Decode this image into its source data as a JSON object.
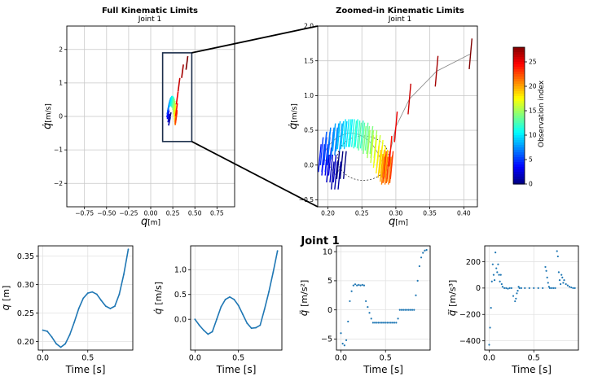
{
  "figure": {
    "suptitle": "Joint 1",
    "accent_color": "#1f77b4",
    "colormap": "jet",
    "connector_color": "#000000",
    "rect_color": "#1b2d4a"
  },
  "chart_data": [
    {
      "id": "full",
      "type": "scatter",
      "title": "Full Kinematic Limits",
      "subtitle": "Joint 1",
      "xlabel_sym": "q",
      "xlabel_unit": "[m]",
      "ylabel_sym": "q̇",
      "ylabel_unit": "[m/s]",
      "xlim": [
        -0.95,
        0.95
      ],
      "ylim": [
        -2.7,
        2.7
      ],
      "xticks": [
        -0.75,
        -0.5,
        -0.25,
        0,
        0.25,
        0.5,
        0.75
      ],
      "xtick_labels": [
        "−0.75",
        "−0.50",
        "−0.25",
        "0.00",
        "0.25",
        "0.50",
        "0.75"
      ],
      "yticks": [
        -2,
        -1,
        0,
        1,
        2
      ],
      "ytick_labels": [
        "−2",
        "−1",
        "0",
        "1",
        "2"
      ],
      "grid": true,
      "zoom_rect": {
        "x": [
          0.135,
          0.465
        ],
        "y": [
          -0.75,
          1.9
        ]
      }
    },
    {
      "id": "zoom",
      "type": "scatter",
      "title": "Zoomed-in Kinematic Limits",
      "subtitle": "Joint 1",
      "xlabel_sym": "q",
      "xlabel_unit": "[m]",
      "ylabel_sym": "q̇",
      "ylabel_unit": "[m/s]",
      "xlim": [
        0.185,
        0.42
      ],
      "ylim": [
        -0.6,
        2.0
      ],
      "xticks": [
        0.2,
        0.25,
        0.3,
        0.35,
        0.4
      ],
      "xtick_labels": [
        "0.20",
        "0.25",
        "0.30",
        "0.35",
        "0.40"
      ],
      "yticks": [
        -0.5,
        0,
        0.5,
        1,
        1.5,
        2
      ],
      "ytick_labels": [
        "−0.5",
        "0.0",
        "0.5",
        "1.0",
        "1.5",
        "2.0"
      ],
      "grid": true,
      "observations": [
        {
          "i": 0,
          "q": 0.22,
          "qd": 0.0
        },
        {
          "i": 1,
          "q": 0.212,
          "qd": -0.15
        },
        {
          "i": 2,
          "q": 0.205,
          "qd": -0.05
        },
        {
          "i": 3,
          "q": 0.198,
          "qd": 0.05
        },
        {
          "i": 4,
          "q": 0.193,
          "qd": 0.1
        },
        {
          "i": 5,
          "q": 0.196,
          "qd": 0.2
        },
        {
          "i": 6,
          "q": 0.201,
          "qd": 0.28
        },
        {
          "i": 7,
          "q": 0.207,
          "qd": 0.34
        },
        {
          "i": 8,
          "q": 0.214,
          "qd": 0.4
        },
        {
          "i": 9,
          "q": 0.221,
          "qd": 0.43
        },
        {
          "i": 10,
          "q": 0.229,
          "qd": 0.46
        },
        {
          "i": 11,
          "q": 0.237,
          "qd": 0.46
        },
        {
          "i": 12,
          "q": 0.245,
          "qd": 0.44
        },
        {
          "i": 13,
          "q": 0.252,
          "qd": 0.41
        },
        {
          "i": 14,
          "q": 0.259,
          "qd": 0.36
        },
        {
          "i": 15,
          "q": 0.265,
          "qd": 0.3
        },
        {
          "i": 16,
          "q": 0.27,
          "qd": 0.23
        },
        {
          "i": 17,
          "q": 0.274,
          "qd": 0.16
        },
        {
          "i": 18,
          "q": 0.278,
          "qd": 0.08
        },
        {
          "i": 19,
          "q": 0.281,
          "qd": 0.02
        },
        {
          "i": 20,
          "q": 0.284,
          "qd": -0.04
        },
        {
          "i": 21,
          "q": 0.286,
          "qd": -0.08
        },
        {
          "i": 22,
          "q": 0.288,
          "qd": -0.06
        },
        {
          "i": 23,
          "q": 0.289,
          "qd": 0.0
        },
        {
          "i": 24,
          "q": 0.292,
          "qd": 0.2
        },
        {
          "i": 25,
          "q": 0.3,
          "qd": 0.55
        },
        {
          "i": 26,
          "q": 0.32,
          "qd": 0.95
        },
        {
          "i": 27,
          "q": 0.36,
          "qd": 1.35
        },
        {
          "i": 28,
          "q": 0.41,
          "qd": 1.6
        }
      ],
      "ellipse_center": [
        0.252,
        0.1
      ],
      "ellipse_radii": [
        0.038,
        0.32
      ]
    },
    {
      "id": "colorbar",
      "type": "heatmap",
      "label": "Observation index",
      "range": [
        0,
        28
      ],
      "ticks": [
        0,
        5,
        10,
        15,
        20,
        25
      ],
      "tick_labels": [
        "0",
        "5",
        "10",
        "15",
        "20",
        "25"
      ]
    },
    {
      "id": "pos",
      "type": "line",
      "ylabel_sym": "q",
      "ylabel_unit": "[m]",
      "xlabel": "Time [s]",
      "xlim": [
        -0.05,
        1.0
      ],
      "ylim": [
        0.185,
        0.368
      ],
      "xticks": [
        0,
        0.5
      ],
      "xtick_labels": [
        "0.0",
        "0.5"
      ],
      "yticks": [
        0.2,
        0.25,
        0.3,
        0.35
      ],
      "ytick_labels": [
        "0.20",
        "0.25",
        "0.30",
        "0.35"
      ],
      "x": [
        0.0,
        0.05,
        0.1,
        0.15,
        0.2,
        0.25,
        0.3,
        0.35,
        0.4,
        0.45,
        0.5,
        0.55,
        0.6,
        0.65,
        0.7,
        0.75,
        0.8,
        0.85,
        0.9,
        0.95
      ],
      "y": [
        0.22,
        0.218,
        0.208,
        0.196,
        0.19,
        0.196,
        0.212,
        0.234,
        0.258,
        0.276,
        0.285,
        0.287,
        0.283,
        0.272,
        0.262,
        0.258,
        0.262,
        0.283,
        0.318,
        0.362
      ]
    },
    {
      "id": "vel",
      "type": "line",
      "ylabel_sym": "q̇",
      "ylabel_unit": "[m/s]",
      "xlabel": "Time [s]",
      "xlim": [
        -0.05,
        1.0
      ],
      "ylim": [
        -0.62,
        1.48
      ],
      "xticks": [
        0,
        0.5
      ],
      "xtick_labels": [
        "0.0",
        "0.5"
      ],
      "yticks": [
        0,
        0.5,
        1.0
      ],
      "ytick_labels": [
        "0.0",
        "0.5",
        "1.0"
      ],
      "x": [
        0.0,
        0.05,
        0.1,
        0.15,
        0.2,
        0.25,
        0.3,
        0.35,
        0.4,
        0.45,
        0.5,
        0.55,
        0.6,
        0.65,
        0.7,
        0.75,
        0.8,
        0.85,
        0.9,
        0.95
      ],
      "y": [
        0.0,
        -0.12,
        -0.22,
        -0.3,
        -0.25,
        0.0,
        0.25,
        0.4,
        0.45,
        0.4,
        0.28,
        0.1,
        -0.08,
        -0.18,
        -0.17,
        -0.12,
        0.2,
        0.55,
        0.95,
        1.38
      ]
    },
    {
      "id": "acc",
      "type": "scatter",
      "ylabel_sym": "q̈",
      "ylabel_unit": "[m/s²]",
      "xlabel": "Time [s]",
      "xlim": [
        -0.05,
        1.0
      ],
      "ylim": [
        -6.9,
        11.0
      ],
      "xticks": [
        0,
        0.5
      ],
      "xtick_labels": [
        "0.0",
        "0.5"
      ],
      "yticks": [
        -5,
        0,
        5,
        10
      ],
      "ytick_labels": [
        "−5",
        "0",
        "5",
        "10"
      ],
      "x": [
        0.0,
        0.02,
        0.04,
        0.06,
        0.08,
        0.1,
        0.12,
        0.14,
        0.16,
        0.18,
        0.2,
        0.22,
        0.24,
        0.26,
        0.28,
        0.3,
        0.32,
        0.34,
        0.36,
        0.38,
        0.4,
        0.42,
        0.44,
        0.46,
        0.48,
        0.5,
        0.52,
        0.54,
        0.56,
        0.58,
        0.6,
        0.62,
        0.64,
        0.66,
        0.68,
        0.7,
        0.72,
        0.74,
        0.76,
        0.78,
        0.8,
        0.82,
        0.84,
        0.86,
        0.88,
        0.9,
        0.92,
        0.94,
        0.96
      ],
      "y": [
        -4.0,
        -5.8,
        -6.1,
        -5.2,
        -2.0,
        1.5,
        3.2,
        4.2,
        4.4,
        4.2,
        4.3,
        4.2,
        4.3,
        4.2,
        1.5,
        0.5,
        -0.5,
        -1.5,
        -2.2,
        -2.2,
        -2.2,
        -2.2,
        -2.2,
        -2.2,
        -2.2,
        -2.2,
        -2.2,
        -2.2,
        -2.2,
        -2.2,
        -2.2,
        -2.2,
        -1.5,
        0.0,
        0.0,
        0.0,
        0.0,
        0.0,
        0.0,
        0.0,
        0.0,
        0.0,
        2.5,
        5.0,
        7.5,
        9.0,
        9.8,
        10.2,
        10.3
      ]
    },
    {
      "id": "jerk",
      "type": "scatter",
      "ylabel_sym": "q⃛",
      "ylabel_unit": "[m/s³]",
      "xlabel": "Time [s]",
      "xlim": [
        -0.05,
        1.0
      ],
      "ylim": [
        -470,
        320
      ],
      "xticks": [
        0,
        0.5
      ],
      "xtick_labels": [
        "0.0",
        "0.5"
      ],
      "yticks": [
        -400,
        -200,
        0,
        200
      ],
      "ytick_labels": [
        "−400",
        "−200",
        "0",
        "200"
      ],
      "x": [
        0.0,
        0.01,
        0.02,
        0.03,
        0.04,
        0.05,
        0.06,
        0.07,
        0.08,
        0.09,
        0.1,
        0.11,
        0.12,
        0.13,
        0.14,
        0.15,
        0.17,
        0.19,
        0.21,
        0.23,
        0.25,
        0.27,
        0.29,
        0.3,
        0.31,
        0.32,
        0.33,
        0.34,
        0.36,
        0.4,
        0.45,
        0.5,
        0.55,
        0.6,
        0.63,
        0.64,
        0.65,
        0.66,
        0.67,
        0.68,
        0.7,
        0.72,
        0.74,
        0.76,
        0.77,
        0.78,
        0.79,
        0.8,
        0.81,
        0.82,
        0.83,
        0.84,
        0.86,
        0.88,
        0.9,
        0.92,
        0.94,
        0.96
      ],
      "y": [
        -430,
        -300,
        -150,
        50,
        180,
        100,
        60,
        270,
        150,
        120,
        180,
        100,
        50,
        100,
        30,
        10,
        0,
        0,
        -5,
        0,
        0,
        -60,
        -100,
        -80,
        -40,
        -20,
        10,
        0,
        0,
        0,
        0,
        0,
        0,
        0,
        160,
        130,
        80,
        40,
        10,
        0,
        0,
        0,
        0,
        280,
        240,
        120,
        60,
        30,
        100,
        80,
        40,
        60,
        30,
        20,
        10,
        5,
        0,
        0
      ]
    }
  ]
}
